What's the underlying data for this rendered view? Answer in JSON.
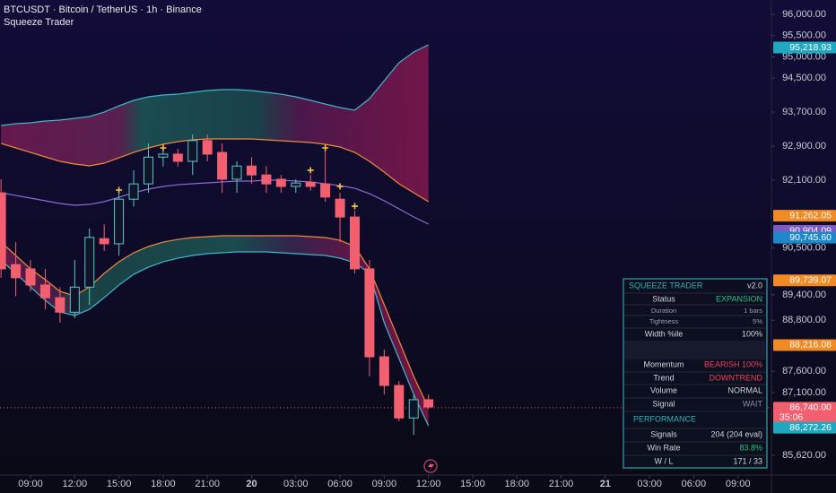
{
  "header": {
    "symbol": "BTCUSDT · Bitcoin / TetherUS · 1h · Binance",
    "indicator": "Squeeze Trader"
  },
  "chart_data": {
    "type": "candlestick",
    "x": [
      -2,
      -1,
      0,
      1,
      2,
      3,
      4,
      5,
      6,
      7,
      8,
      9,
      10,
      11,
      12,
      13,
      14,
      15,
      16,
      17,
      18,
      19,
      20,
      21,
      22,
      23,
      24,
      25,
      26,
      27
    ],
    "open": [
      91800,
      90110,
      90010,
      89630,
      89330,
      88990,
      89580,
      90720,
      90600,
      91650,
      92010,
      92640,
      92710,
      92540,
      93030,
      92750,
      92120,
      92430,
      92220,
      92120,
      91950,
      92050,
      92010,
      91650,
      91230,
      90010,
      87940,
      87265,
      86500,
      86930
    ],
    "high": [
      92120,
      90640,
      90220,
      90010,
      89580,
      90220,
      90960,
      91060,
      91800,
      92330,
      92960,
      92960,
      92830,
      93170,
      93170,
      92960,
      92540,
      92640,
      92430,
      92220,
      92120,
      92220,
      92860,
      91800,
      91380,
      90220,
      88110,
      87370,
      87050,
      87050
    ],
    "low": [
      89800,
      89370,
      89480,
      89060,
      88740,
      88850,
      89160,
      90430,
      90320,
      91480,
      91800,
      92420,
      92420,
      92220,
      92540,
      91800,
      91800,
      92010,
      91800,
      91800,
      91800,
      91850,
      91590,
      90640,
      89900,
      87480,
      87050,
      86420,
      86100,
      86720
    ],
    "close": [
      90010,
      89800,
      89630,
      89330,
      88990,
      89580,
      90750,
      90600,
      91650,
      92010,
      92640,
      92710,
      92540,
      93030,
      92710,
      92120,
      92430,
      92220,
      92010,
      91950,
      92030,
      91950,
      91700,
      91230,
      90010,
      87940,
      87265,
      86500,
      86930,
      86760
    ],
    "up_color": "#5ec7c2",
    "down_color": "#f2606f",
    "bands": [
      {
        "color": "#3fb8c9",
        "values": [
          93384,
          93426,
          93447,
          93490,
          93511,
          93553,
          93595,
          93700,
          93848,
          93975,
          94059,
          94101,
          94122,
          94165,
          94207,
          94228,
          94228,
          94207,
          94165,
          94122,
          94059,
          93975,
          93890,
          93806,
          93743,
          94017,
          94439,
          94861,
          95114,
          95283
        ]
      },
      {
        "color": "#f08a3a",
        "values": [
          92962,
          92857,
          92751,
          92646,
          92540,
          92477,
          92435,
          92498,
          92624,
          92751,
          92857,
          92941,
          93004,
          93046,
          93068,
          93068,
          93068,
          93068,
          93046,
          93025,
          93004,
          92983,
          92941,
          92878,
          92751,
          92540,
          92287,
          92013,
          91802,
          91591
        ]
      },
      {
        "color": "#8e6ad8",
        "values": [
          91802,
          91738,
          91675,
          91612,
          91549,
          91506,
          91527,
          91591,
          91696,
          91802,
          91886,
          91949,
          91991,
          92013,
          92034,
          92055,
          92076,
          92076,
          92097,
          92097,
          92076,
          92055,
          92013,
          91970,
          91907,
          91780,
          91612,
          91422,
          91232,
          91063
        ]
      },
      {
        "color": "#f08a3a",
        "values": [
          90641,
          90325,
          90008,
          89755,
          89480,
          89375,
          89586,
          89903,
          90177,
          90388,
          90536,
          90641,
          90704,
          90747,
          90768,
          90789,
          90789,
          90789,
          90789,
          90789,
          90789,
          90768,
          90747,
          90683,
          90536,
          90008,
          89164,
          88320,
          87476,
          86738
        ]
      },
      {
        "color": "#3fb8c9",
        "values": [
          90219,
          89903,
          89586,
          89270,
          88995,
          88911,
          89058,
          89333,
          89628,
          89881,
          90050,
          90177,
          90261,
          90325,
          90367,
          90388,
          90409,
          90409,
          90409,
          90388,
          90367,
          90346,
          90325,
          90261,
          90156,
          89903,
          88742,
          87898,
          87054,
          86316
        ]
      }
    ],
    "signals": {
      "color": "#f5c542",
      "x": [
        6,
        9,
        19,
        20,
        21,
        22
      ],
      "values": [
        91865,
        92857,
        92330,
        92857,
        91949,
        91485
      ]
    },
    "last_price": 86740,
    "last_color": "#f2606f",
    "xlim": [
      -2.07,
      50.27
    ],
    "ylim": [
      85156,
      96338
    ],
    "xticks": [
      {
        "value": 0,
        "label": "09:00"
      },
      {
        "value": 3,
        "label": "12:00"
      },
      {
        "value": 6,
        "label": "15:00"
      },
      {
        "value": 9,
        "label": "18:00"
      },
      {
        "value": 12,
        "label": "21:00"
      },
      {
        "value": 15,
        "label": "20"
      },
      {
        "value": 18,
        "label": "03:00"
      },
      {
        "value": 21,
        "label": "06:00"
      },
      {
        "value": 24,
        "label": "09:00"
      },
      {
        "value": 27,
        "label": "12:00"
      },
      {
        "value": 30,
        "label": "15:00"
      },
      {
        "value": 33,
        "label": "18:00"
      },
      {
        "value": 36,
        "label": "21:00"
      },
      {
        "value": 39,
        "label": "21"
      },
      {
        "value": 42,
        "label": "03:00"
      },
      {
        "value": 45,
        "label": "06:00"
      },
      {
        "value": 48,
        "label": "09:00"
      }
    ],
    "yticks": [
      {
        "value": 96000,
        "label": "96,000.00"
      },
      {
        "value": 95500,
        "label": "95,500.00"
      },
      {
        "value": 95000,
        "label": "95,000.00"
      },
      {
        "value": 94500,
        "label": "94,500.00"
      },
      {
        "value": 93700,
        "label": "93,700.00"
      },
      {
        "value": 92900,
        "label": "92,900.00"
      },
      {
        "value": 92100,
        "label": "92,100.00"
      },
      {
        "value": 90500,
        "label": "90,500.00"
      },
      {
        "value": 89400,
        "label": "89,400.00"
      },
      {
        "value": 88800,
        "label": "88,800.00"
      },
      {
        "value": 87600,
        "label": "87,600.00"
      },
      {
        "value": 87100,
        "label": "87,100.00"
      },
      {
        "value": 85620,
        "label": "85,620.00"
      }
    ],
    "price_labels": [
      {
        "value": 95218.93,
        "label": "95,218.93",
        "color": "#1fa9c0"
      },
      {
        "value": 91262.05,
        "label": "91,262.05",
        "color": "#f08a24"
      },
      {
        "value": 90904.09,
        "label": "90,904.09",
        "color": "#7c5cc4"
      },
      {
        "value": 90745.6,
        "label": "90,745.60",
        "color": "#1e88c8"
      },
      {
        "value": 89739.07,
        "label": "89,739.07",
        "color": "#f08a24"
      },
      {
        "value": 88216.08,
        "label": "88,216.08",
        "color": "#f08a24"
      },
      {
        "value": 86740,
        "label": "86,740.00",
        "sub": "35:06",
        "color": "#f2606f"
      },
      {
        "value": 86272.26,
        "label": "86,272.26",
        "color": "#1fa9c0"
      }
    ]
  },
  "panel": {
    "title": "SQUEEZE TRADER",
    "version": "v2.0",
    "performance": "PERFORMANCE",
    "rows": [
      {
        "label": "Status",
        "value": "EXPANSION",
        "color": "#26c281"
      },
      {
        "label": "Duration",
        "value": "1 bars",
        "color": "#9aa0b0"
      },
      {
        "label": "Tightness",
        "value": "5%",
        "color": "#9aa0b0"
      },
      {
        "label": "Width %ile",
        "value": "100%",
        "color": "#d1d4dc"
      },
      {
        "label": "Momentum",
        "value": "BEARISH 100%",
        "color": "#f0405a"
      },
      {
        "label": "Trend",
        "value": "DOWNTREND",
        "color": "#f0405a"
      },
      {
        "label": "Volume",
        "value": "NORMAL",
        "color": "#d1d4dc"
      },
      {
        "label": "Signal",
        "value": "WAIT",
        "color": "#8a8f9c"
      }
    ],
    "perf_rows": [
      {
        "label": "Signals",
        "value": "204 (204 eval)",
        "color": "#d1d4dc"
      },
      {
        "label": "Win Rate",
        "value": "83.8%",
        "color": "#26c281"
      },
      {
        "label": "W / L",
        "value": "171 / 33",
        "color": "#d1d4dc"
      }
    ]
  }
}
